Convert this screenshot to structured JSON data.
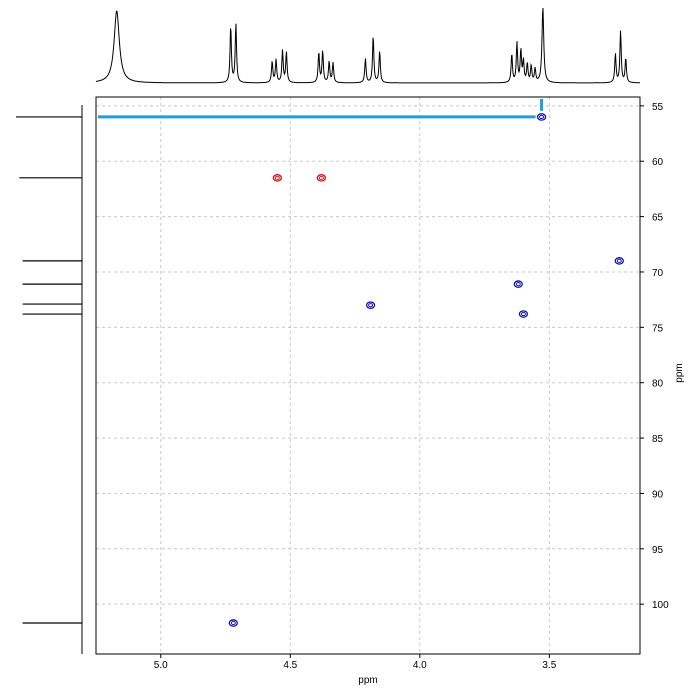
{
  "chart_data": {
    "type": "scatter",
    "subtype": "2D NMR HSQC contour plot with 1D projections",
    "title": "",
    "xlabel": "ppm",
    "ylabel": "ppm",
    "x_reversed": true,
    "y_reversed": true,
    "xlim": [
      5.25,
      3.15
    ],
    "ylim": [
      54.2,
      104.5
    ],
    "x_ticks": [
      5.0,
      4.5,
      4.0,
      3.5
    ],
    "y_ticks": [
      55,
      60,
      65,
      70,
      75,
      80,
      85,
      90,
      95,
      100
    ],
    "grid": true,
    "cross_peaks": [
      {
        "x": 3.53,
        "y": 56.0,
        "phase": "positive"
      },
      {
        "x": 4.55,
        "y": 61.5,
        "phase": "negative"
      },
      {
        "x": 4.38,
        "y": 61.5,
        "phase": "negative"
      },
      {
        "x": 3.23,
        "y": 69.0,
        "phase": "positive"
      },
      {
        "x": 3.62,
        "y": 71.1,
        "phase": "positive"
      },
      {
        "x": 4.19,
        "y": 73.0,
        "phase": "positive"
      },
      {
        "x": 3.6,
        "y": 73.8,
        "phase": "positive"
      },
      {
        "x": 4.72,
        "y": 101.7,
        "phase": "positive"
      }
    ],
    "highlight": {
      "x": 3.53,
      "y": 56.0,
      "color": "#1aa0e0"
    },
    "projection_1h_peaks": [
      {
        "x": 5.17,
        "h": 0.95,
        "w": 0.012
      },
      {
        "x": 4.73,
        "h": 0.75,
        "w": 0.003
      },
      {
        "x": 4.71,
        "h": 0.78,
        "w": 0.003
      },
      {
        "x": 4.57,
        "h": 0.28,
        "w": 0.003
      },
      {
        "x": 4.555,
        "h": 0.3,
        "w": 0.003
      },
      {
        "x": 4.53,
        "h": 0.42,
        "w": 0.003
      },
      {
        "x": 4.515,
        "h": 0.4,
        "w": 0.003
      },
      {
        "x": 4.39,
        "h": 0.4,
        "w": 0.003
      },
      {
        "x": 4.375,
        "h": 0.42,
        "w": 0.003
      },
      {
        "x": 4.35,
        "h": 0.28,
        "w": 0.003
      },
      {
        "x": 4.335,
        "h": 0.26,
        "w": 0.003
      },
      {
        "x": 4.21,
        "h": 0.32,
        "w": 0.003
      },
      {
        "x": 4.18,
        "h": 0.62,
        "w": 0.003
      },
      {
        "x": 4.155,
        "h": 0.42,
        "w": 0.003
      },
      {
        "x": 3.645,
        "h": 0.38,
        "w": 0.003
      },
      {
        "x": 3.625,
        "h": 0.52,
        "w": 0.003
      },
      {
        "x": 3.61,
        "h": 0.42,
        "w": 0.003
      },
      {
        "x": 3.6,
        "h": 0.28,
        "w": 0.003
      },
      {
        "x": 3.585,
        "h": 0.25,
        "w": 0.003
      },
      {
        "x": 3.57,
        "h": 0.22,
        "w": 0.003
      },
      {
        "x": 3.555,
        "h": 0.18,
        "w": 0.003
      },
      {
        "x": 3.525,
        "h": 1.0,
        "w": 0.004
      },
      {
        "x": 3.245,
        "h": 0.38,
        "w": 0.003
      },
      {
        "x": 3.225,
        "h": 0.68,
        "w": 0.003
      },
      {
        "x": 3.205,
        "h": 0.32,
        "w": 0.003
      }
    ],
    "projection_13c_peaks": [
      {
        "y": 56.0,
        "h": 1.0
      },
      {
        "y": 61.5,
        "h": 0.95
      },
      {
        "y": 69.0,
        "h": 0.9
      },
      {
        "y": 71.1,
        "h": 0.9
      },
      {
        "y": 72.9,
        "h": 0.9
      },
      {
        "y": 73.8,
        "h": 0.9
      },
      {
        "y": 101.7,
        "h": 0.9
      }
    ]
  }
}
